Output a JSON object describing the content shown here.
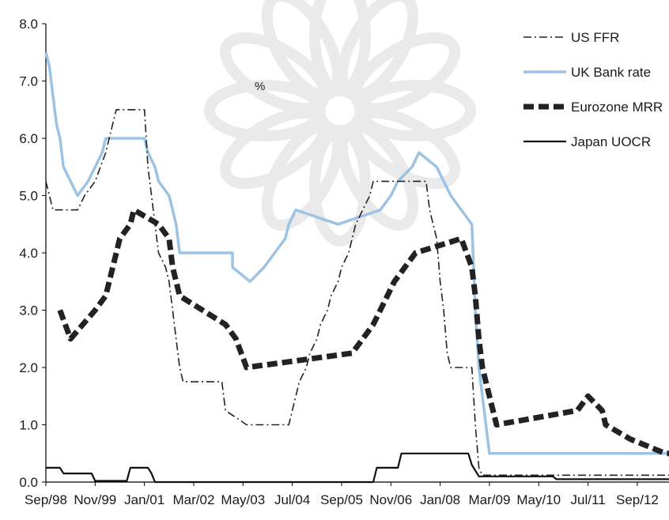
{
  "chart_data": {
    "type": "line",
    "title": "",
    "xlabel": "",
    "ylabel": "%",
    "ylim": [
      0,
      8
    ],
    "xlim": [
      "1998-09",
      "2013-06"
    ],
    "yticks": [
      0,
      1,
      2,
      3,
      4,
      5,
      6,
      7,
      8
    ],
    "ytick_labels": [
      "0.0",
      "1.0",
      "2.0",
      "3.0",
      "4.0",
      "5.0",
      "6.0",
      "7.0",
      "8.0"
    ],
    "xticks": [
      "1998-09",
      "1999-11",
      "2001-01",
      "2002-03",
      "2003-05",
      "2004-07",
      "2005-09",
      "2006-11",
      "2008-01",
      "2009-03",
      "2010-05",
      "2011-07",
      "2012-09"
    ],
    "xtick_labels": [
      "Sep/98",
      "Nov/99",
      "Jan/01",
      "Mar/02",
      "May/03",
      "Jul/04",
      "Sep/05",
      "Nov/06",
      "Jan/08",
      "Mar/09",
      "May/10",
      "Jul/11",
      "Sep/12"
    ],
    "grid": false,
    "legend_position": "top-right",
    "series": [
      {
        "name": "US FFR",
        "style": "dash-dot",
        "color": "#222222",
        "points": [
          [
            "1998-09",
            5.25
          ],
          [
            "1998-10",
            5.0
          ],
          [
            "1998-11",
            4.75
          ],
          [
            "1999-06",
            4.75
          ],
          [
            "1999-08",
            5.0
          ],
          [
            "1999-11",
            5.25
          ],
          [
            "2000-02",
            5.75
          ],
          [
            "2000-03",
            6.0
          ],
          [
            "2000-05",
            6.5
          ],
          [
            "2001-01",
            6.5
          ],
          [
            "2001-02",
            5.5
          ],
          [
            "2001-03",
            5.0
          ],
          [
            "2001-04",
            4.5
          ],
          [
            "2001-05",
            4.0
          ],
          [
            "2001-07",
            3.75
          ],
          [
            "2001-08",
            3.5
          ],
          [
            "2001-09",
            3.0
          ],
          [
            "2001-10",
            2.5
          ],
          [
            "2001-11",
            2.0
          ],
          [
            "2001-12",
            1.75
          ],
          [
            "2002-11",
            1.75
          ],
          [
            "2002-12",
            1.25
          ],
          [
            "2003-06",
            1.0
          ],
          [
            "2004-06",
            1.0
          ],
          [
            "2004-07",
            1.25
          ],
          [
            "2004-08",
            1.5
          ],
          [
            "2004-09",
            1.75
          ],
          [
            "2004-11",
            2.0
          ],
          [
            "2004-12",
            2.25
          ],
          [
            "2005-02",
            2.5
          ],
          [
            "2005-03",
            2.75
          ],
          [
            "2005-05",
            3.0
          ],
          [
            "2005-06",
            3.25
          ],
          [
            "2005-08",
            3.5
          ],
          [
            "2005-09",
            3.75
          ],
          [
            "2005-11",
            4.0
          ],
          [
            "2005-12",
            4.25
          ],
          [
            "2006-01",
            4.5
          ],
          [
            "2006-03",
            4.75
          ],
          [
            "2006-05",
            5.0
          ],
          [
            "2006-06",
            5.25
          ],
          [
            "2007-09",
            5.25
          ],
          [
            "2007-10",
            4.75
          ],
          [
            "2007-11",
            4.5
          ],
          [
            "2007-12",
            4.25
          ],
          [
            "2008-01",
            3.5
          ],
          [
            "2008-02",
            3.0
          ],
          [
            "2008-03",
            2.25
          ],
          [
            "2008-04",
            2.0
          ],
          [
            "2008-10",
            2.0
          ],
          [
            "2008-11",
            1.0
          ],
          [
            "2008-12",
            0.25
          ],
          [
            "2009-01",
            0.12
          ],
          [
            "2013-06",
            0.12
          ]
        ]
      },
      {
        "name": "UK Bank rate",
        "style": "solid",
        "color": "#9cc3e4",
        "points": [
          [
            "1998-09",
            7.5
          ],
          [
            "1998-10",
            7.25
          ],
          [
            "1998-11",
            6.75
          ],
          [
            "1998-12",
            6.25
          ],
          [
            "1999-01",
            6.0
          ],
          [
            "1999-02",
            5.5
          ],
          [
            "1999-04",
            5.25
          ],
          [
            "1999-06",
            5.0
          ],
          [
            "1999-09",
            5.25
          ],
          [
            "1999-11",
            5.5
          ],
          [
            "2000-01",
            5.75
          ],
          [
            "2000-02",
            6.0
          ],
          [
            "2001-01",
            6.0
          ],
          [
            "2001-02",
            5.75
          ],
          [
            "2001-04",
            5.5
          ],
          [
            "2001-05",
            5.25
          ],
          [
            "2001-08",
            5.0
          ],
          [
            "2001-09",
            4.75
          ],
          [
            "2001-10",
            4.5
          ],
          [
            "2001-11",
            4.0
          ],
          [
            "2003-02",
            4.0
          ],
          [
            "2003-02",
            3.75
          ],
          [
            "2003-07",
            3.5
          ],
          [
            "2003-11",
            3.75
          ],
          [
            "2004-02",
            4.0
          ],
          [
            "2004-05",
            4.25
          ],
          [
            "2004-06",
            4.5
          ],
          [
            "2004-08",
            4.75
          ],
          [
            "2005-08",
            4.5
          ],
          [
            "2006-08",
            4.75
          ],
          [
            "2006-11",
            5.0
          ],
          [
            "2007-01",
            5.25
          ],
          [
            "2007-05",
            5.5
          ],
          [
            "2007-07",
            5.75
          ],
          [
            "2007-12",
            5.5
          ],
          [
            "2008-02",
            5.25
          ],
          [
            "2008-04",
            5.0
          ],
          [
            "2008-10",
            4.5
          ],
          [
            "2008-11",
            3.0
          ],
          [
            "2008-12",
            2.0
          ],
          [
            "2009-01",
            1.5
          ],
          [
            "2009-02",
            1.0
          ],
          [
            "2009-03",
            0.5
          ],
          [
            "2013-06",
            0.5
          ]
        ]
      },
      {
        "name": "Eurozone MRR",
        "style": "dashed-bold",
        "color": "#222222",
        "points": [
          [
            "1999-01",
            3.0
          ],
          [
            "1999-04",
            2.5
          ],
          [
            "1999-11",
            3.0
          ],
          [
            "2000-02",
            3.25
          ],
          [
            "2000-03",
            3.5
          ],
          [
            "2000-04",
            3.75
          ],
          [
            "2000-06",
            4.25
          ],
          [
            "2000-09",
            4.5
          ],
          [
            "2000-10",
            4.75
          ],
          [
            "2001-05",
            4.5
          ],
          [
            "2001-08",
            4.25
          ],
          [
            "2001-09",
            3.75
          ],
          [
            "2001-11",
            3.25
          ],
          [
            "2002-12",
            2.75
          ],
          [
            "2003-03",
            2.5
          ],
          [
            "2003-06",
            2.0
          ],
          [
            "2005-12",
            2.25
          ],
          [
            "2006-03",
            2.5
          ],
          [
            "2006-06",
            2.75
          ],
          [
            "2006-08",
            3.0
          ],
          [
            "2006-10",
            3.25
          ],
          [
            "2006-12",
            3.5
          ],
          [
            "2007-03",
            3.75
          ],
          [
            "2007-06",
            4.0
          ],
          [
            "2008-07",
            4.25
          ],
          [
            "2008-10",
            3.75
          ],
          [
            "2008-11",
            3.25
          ],
          [
            "2008-12",
            2.5
          ],
          [
            "2009-01",
            2.0
          ],
          [
            "2009-03",
            1.5
          ],
          [
            "2009-04",
            1.25
          ],
          [
            "2009-05",
            1.0
          ],
          [
            "2011-04",
            1.25
          ],
          [
            "2011-07",
            1.5
          ],
          [
            "2011-11",
            1.25
          ],
          [
            "2011-12",
            1.0
          ],
          [
            "2012-07",
            0.75
          ],
          [
            "2013-05",
            0.5
          ],
          [
            "2013-06",
            0.5
          ]
        ]
      },
      {
        "name": "Japan UOCR",
        "style": "solid-thin",
        "color": "#111111",
        "points": [
          [
            "1998-09",
            0.25
          ],
          [
            "1999-01",
            0.25
          ],
          [
            "1999-02",
            0.15
          ],
          [
            "1999-03",
            0.15
          ],
          [
            "1999-10",
            0.15
          ],
          [
            "1999-11",
            0.02
          ],
          [
            "2000-08",
            0.02
          ],
          [
            "2000-09",
            0.25
          ],
          [
            "2001-02",
            0.25
          ],
          [
            "2001-03",
            0.15
          ],
          [
            "2001-04",
            0.0
          ],
          [
            "2006-06",
            0.0
          ],
          [
            "2006-07",
            0.25
          ],
          [
            "2007-01",
            0.25
          ],
          [
            "2007-02",
            0.5
          ],
          [
            "2008-09",
            0.5
          ],
          [
            "2008-10",
            0.3
          ],
          [
            "2008-12",
            0.1
          ],
          [
            "2010-09",
            0.1
          ],
          [
            "2010-10",
            0.05
          ],
          [
            "2013-06",
            0.05
          ]
        ]
      }
    ]
  }
}
